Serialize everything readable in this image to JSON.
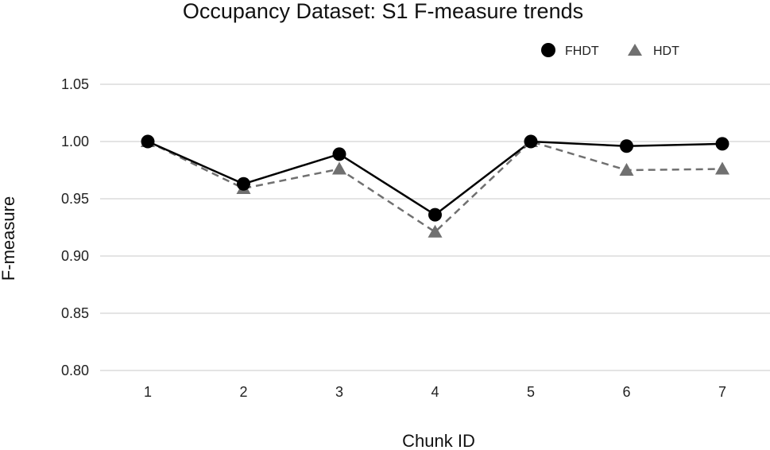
{
  "chart_data": {
    "type": "line",
    "title": "Occupancy Dataset: S1 F-measure trends",
    "xlabel": "Chunk ID",
    "ylabel": "F-measure",
    "categories": [
      "1",
      "2",
      "3",
      "4",
      "5",
      "6",
      "7"
    ],
    "ylim": [
      0.8,
      1.05
    ],
    "yticks": [
      "0.80",
      "0.85",
      "0.90",
      "0.95",
      "1.00",
      "1.05"
    ],
    "grid": "horizontal",
    "legend_position": "top-right",
    "series": [
      {
        "name": "FHDT",
        "values": [
          1.0,
          0.963,
          0.989,
          0.936,
          1.0,
          0.996,
          0.998
        ],
        "color": "#000000",
        "marker": "circle",
        "line": "solid"
      },
      {
        "name": "HDT",
        "values": [
          1.0,
          0.959,
          0.976,
          0.921,
          1.0,
          0.975,
          0.976
        ],
        "color": "#707070",
        "marker": "triangle",
        "line": "dashed"
      }
    ]
  }
}
